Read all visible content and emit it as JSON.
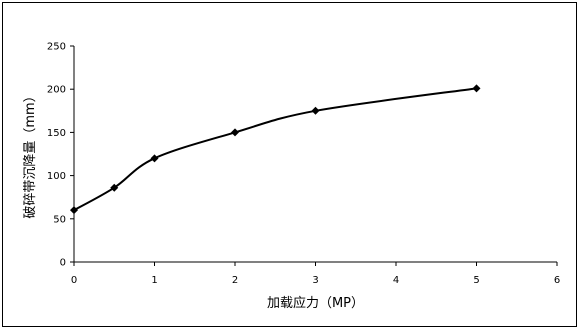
{
  "chart_data": {
    "type": "scatter",
    "title": "",
    "xlabel": "加载应力（MP）",
    "ylabel": "破碎带沉降量（mm）",
    "xlim": [
      0,
      6
    ],
    "ylim": [
      0,
      250
    ],
    "x_ticks": [
      "0",
      "1",
      "2",
      "3",
      "4",
      "5",
      "6"
    ],
    "y_ticks": [
      "0",
      "50",
      "100",
      "150",
      "200",
      "250"
    ],
    "grid": false,
    "legend": "none",
    "series": [
      {
        "marker": "diamond",
        "points": [
          {
            "x": 0,
            "y": 60
          },
          {
            "x": 0.5,
            "y": 86
          },
          {
            "x": 1,
            "y": 120
          },
          {
            "x": 2,
            "y": 150
          },
          {
            "x": 3,
            "y": 175
          },
          {
            "x": 5,
            "y": 201
          }
        ],
        "trendline": "smooth fit"
      }
    ],
    "colors": {
      "axis": "#000000",
      "marker": "#000000",
      "curve": "#000000"
    }
  }
}
